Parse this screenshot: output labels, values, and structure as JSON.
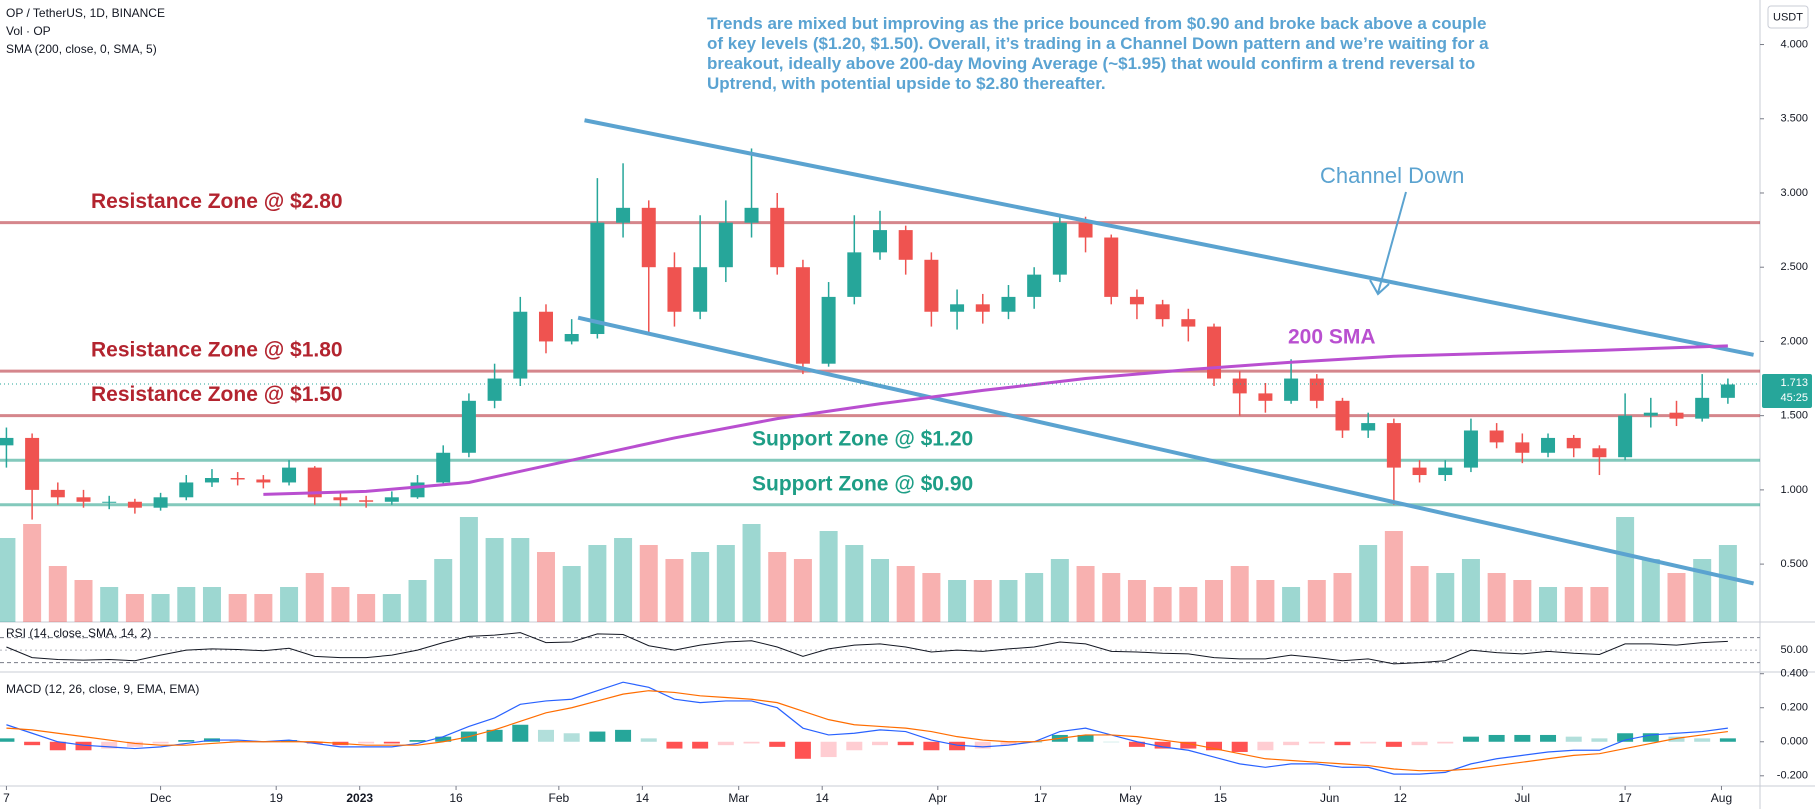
{
  "header": {
    "symbol": "OP / TetherUS, 1D, BINANCE",
    "volume_label": "Vol · OP",
    "sma_label": "SMA (200, close, 0, SMA, 5)",
    "currency": "USDT"
  },
  "chart_data": [
    {
      "type": "candlestick",
      "x": [
        0,
        4,
        8,
        12,
        16,
        20,
        24,
        28,
        32,
        36,
        40,
        44,
        48,
        52,
        56,
        60,
        64,
        68,
        72,
        76,
        80,
        84,
        88,
        92,
        96,
        100,
        104,
        108,
        112,
        116,
        120,
        124,
        128,
        132,
        136,
        140,
        144,
        148,
        152,
        156,
        160,
        164,
        168,
        172,
        176,
        180,
        184,
        188,
        192,
        196,
        200,
        204,
        208,
        212,
        216,
        220,
        224,
        228,
        232,
        236,
        240,
        244,
        248,
        252,
        256,
        260,
        264,
        268
      ],
      "open": [
        1.3,
        1.35,
        1.0,
        0.95,
        0.92,
        0.92,
        0.88,
        0.95,
        1.05,
        1.08,
        1.07,
        1.05,
        1.15,
        0.95,
        0.93,
        0.92,
        0.95,
        1.05,
        1.25,
        1.6,
        1.75,
        2.2,
        2.0,
        2.05,
        2.8,
        2.9,
        2.5,
        2.2,
        2.5,
        2.8,
        2.9,
        2.5,
        1.85,
        2.3,
        2.6,
        2.75,
        2.55,
        2.2,
        2.25,
        2.2,
        2.3,
        2.45,
        2.8,
        2.7,
        2.3,
        2.25,
        2.15,
        2.1,
        1.75,
        1.65,
        1.6,
        1.75,
        1.6,
        1.4,
        1.45,
        1.15,
        1.1,
        1.15,
        1.4,
        1.32,
        1.25,
        1.35,
        1.28,
        1.22,
        1.5,
        1.52,
        1.48,
        1.62
      ],
      "high": [
        1.42,
        1.38,
        1.05,
        1.0,
        0.96,
        0.94,
        0.98,
        1.1,
        1.14,
        1.12,
        1.1,
        1.2,
        1.16,
        0.99,
        0.96,
        0.99,
        1.1,
        1.3,
        1.65,
        1.85,
        2.3,
        2.25,
        2.15,
        3.1,
        3.2,
        2.95,
        2.6,
        2.85,
        2.95,
        3.3,
        3.0,
        2.55,
        2.4,
        2.85,
        2.88,
        2.78,
        2.6,
        2.35,
        2.32,
        2.38,
        2.5,
        2.85,
        2.84,
        2.72,
        2.35,
        2.28,
        2.22,
        2.12,
        1.8,
        1.72,
        1.88,
        1.78,
        1.62,
        1.52,
        1.48,
        1.2,
        1.2,
        1.48,
        1.45,
        1.38,
        1.38,
        1.37,
        1.3,
        1.65,
        1.62,
        1.6,
        1.78,
        1.75
      ],
      "low": [
        1.15,
        0.8,
        0.9,
        0.88,
        0.87,
        0.84,
        0.86,
        0.93,
        1.02,
        1.03,
        1.01,
        1.03,
        0.9,
        0.89,
        0.88,
        0.9,
        0.94,
        1.03,
        1.22,
        1.55,
        1.7,
        1.92,
        1.98,
        2.02,
        2.7,
        2.05,
        2.1,
        2.15,
        2.4,
        2.7,
        2.45,
        1.78,
        1.83,
        2.25,
        2.55,
        2.45,
        2.1,
        2.08,
        2.12,
        2.15,
        2.22,
        2.4,
        2.6,
        2.25,
        2.15,
        2.1,
        2.0,
        1.7,
        1.5,
        1.52,
        1.58,
        1.55,
        1.35,
        1.35,
        0.9,
        1.05,
        1.06,
        1.12,
        1.28,
        1.18,
        1.22,
        1.22,
        1.1,
        1.2,
        1.42,
        1.43,
        1.46,
        1.58
      ],
      "close": [
        1.35,
        1.0,
        0.95,
        0.92,
        0.92,
        0.88,
        0.95,
        1.05,
        1.08,
        1.07,
        1.05,
        1.15,
        0.95,
        0.93,
        0.92,
        0.95,
        1.05,
        1.25,
        1.6,
        1.75,
        2.2,
        2.0,
        2.05,
        2.8,
        2.9,
        2.5,
        2.2,
        2.5,
        2.8,
        2.9,
        2.5,
        1.85,
        2.3,
        2.6,
        2.75,
        2.55,
        2.2,
        2.25,
        2.2,
        2.3,
        2.45,
        2.8,
        2.7,
        2.3,
        2.25,
        2.15,
        2.1,
        1.75,
        1.65,
        1.6,
        1.75,
        1.6,
        1.4,
        1.45,
        1.15,
        1.1,
        1.15,
        1.4,
        1.32,
        1.25,
        1.35,
        1.28,
        1.22,
        1.5,
        1.52,
        1.48,
        1.62,
        1.71
      ],
      "volume": [
        60,
        70,
        40,
        30,
        25,
        20,
        20,
        25,
        25,
        20,
        20,
        25,
        35,
        25,
        20,
        20,
        30,
        45,
        75,
        60,
        60,
        50,
        40,
        55,
        60,
        55,
        45,
        50,
        55,
        70,
        50,
        45,
        65,
        55,
        45,
        40,
        35,
        30,
        30,
        30,
        35,
        45,
        40,
        35,
        30,
        25,
        25,
        30,
        40,
        30,
        25,
        30,
        35,
        55,
        65,
        40,
        35,
        45,
        35,
        30,
        25,
        25,
        25,
        75,
        45,
        35,
        45,
        55
      ],
      "volume_lim": [
        0,
        100
      ],
      "up_color": "#26a69a",
      "down_color": "#ef5350",
      "xlim": [
        -1,
        273
      ],
      "ylim": [
        0.11,
        4.3
      ],
      "xticks": [
        {
          "value": 0,
          "label": "7"
        },
        {
          "value": 24,
          "label": "Dec"
        },
        {
          "value": 42,
          "label": "19"
        },
        {
          "value": 55,
          "label": "2023"
        },
        {
          "value": 70,
          "label": "16"
        },
        {
          "value": 86,
          "label": "Feb"
        },
        {
          "value": 99,
          "label": "14"
        },
        {
          "value": 114,
          "label": "Mar"
        },
        {
          "value": 127,
          "label": "14"
        },
        {
          "value": 145,
          "label": "Apr"
        },
        {
          "value": 161,
          "label": "17"
        },
        {
          "value": 175,
          "label": "May"
        },
        {
          "value": 189,
          "label": "15"
        },
        {
          "value": 206,
          "label": "Jun"
        },
        {
          "value": 217,
          "label": "12"
        },
        {
          "value": 236,
          "label": "Jul"
        },
        {
          "value": 252,
          "label": "17"
        },
        {
          "value": 267,
          "label": "Aug"
        }
      ],
      "yticks": [
        {
          "value": 0.5,
          "label": "0.500"
        },
        {
          "value": 1,
          "label": "1.000"
        },
        {
          "value": 1.5,
          "label": "1.500"
        },
        {
          "value": 2,
          "label": "2.000"
        },
        {
          "value": 2.5,
          "label": "2.500"
        },
        {
          "value": 3,
          "label": "3.000"
        },
        {
          "value": 3.5,
          "label": "3.500"
        },
        {
          "value": 4,
          "label": "4.000"
        }
      ],
      "sma": {
        "name": "200 SMA",
        "color": "#b94fd0",
        "x": [
          40,
          56,
          72,
          88,
          104,
          120,
          136,
          152,
          168,
          184,
          200,
          216,
          232,
          248,
          268
        ],
        "values": [
          0.97,
          0.99,
          1.05,
          1.2,
          1.35,
          1.48,
          1.58,
          1.67,
          1.75,
          1.81,
          1.86,
          1.9,
          1.92,
          1.94,
          1.97
        ]
      },
      "zones": [
        {
          "label": "Resistance Zone @ $2.80",
          "level": 2.8,
          "color": "#b3242f"
        },
        {
          "label": "Resistance Zone @ $1.80",
          "level": 1.8,
          "color": "#b3242f"
        },
        {
          "label": "Resistance Zone @ $1.50",
          "level": 1.5,
          "color": "#b3242f"
        },
        {
          "label": "Support Zone @ $1.20",
          "level": 1.2,
          "color": "#1e9e86"
        },
        {
          "label": "Support Zone @ $0.90",
          "level": 0.9,
          "color": "#1e9e86"
        }
      ],
      "channels": [
        {
          "name": "Channel Down",
          "color": "#5ba3d0",
          "x": [
            90,
            272
          ],
          "values": [
            3.49,
            1.91
          ]
        },
        {
          "color": "#5ba3d0",
          "x": [
            89,
            272
          ],
          "values": [
            2.16,
            0.37
          ]
        }
      ],
      "annotation": "Trends are mixed but improving as the price bounced from $0.90 and broke back above a couple of key levels ($1.20, $1.50). Overall, it’s trading in a Channel Down pattern and we’re waiting for a breakout, ideally above 200-day Moving Average (~$1.95) that would confirm a trend reversal to Uptrend, with potential upside to $2.80 thereafter.",
      "current_price": 1.713,
      "countdown": "45:25"
    },
    {
      "type": "line",
      "title": "RSI (14, close, SMA, 14, 2)",
      "color": "#131722",
      "values": [
        55,
        38,
        35,
        34,
        35,
        33,
        42,
        50,
        52,
        51,
        49,
        53,
        40,
        38,
        38,
        42,
        50,
        62,
        72,
        74,
        78,
        62,
        63,
        76,
        75,
        57,
        50,
        58,
        63,
        65,
        55,
        40,
        52,
        58,
        60,
        55,
        47,
        50,
        48,
        52,
        55,
        63,
        60,
        48,
        47,
        45,
        44,
        38,
        36,
        36,
        42,
        38,
        33,
        36,
        28,
        30,
        33,
        50,
        46,
        44,
        48,
        45,
        43,
        60,
        60,
        58,
        62,
        64
      ],
      "bands": [
        70,
        30
      ],
      "ylim": [
        15,
        95
      ],
      "yticks": [
        {
          "value": 50,
          "label": "50.00"
        }
      ]
    },
    {
      "type": "macd",
      "title": "MACD (12, 26, close, 9, EMA, EMA)",
      "macd": [
        0.1,
        0.05,
        0.0,
        -0.02,
        -0.03,
        -0.04,
        -0.03,
        -0.01,
        0.01,
        0.01,
        0.0,
        0.01,
        -0.01,
        -0.03,
        -0.03,
        -0.03,
        -0.01,
        0.03,
        0.09,
        0.14,
        0.22,
        0.24,
        0.25,
        0.3,
        0.35,
        0.32,
        0.25,
        0.23,
        0.24,
        0.24,
        0.2,
        0.08,
        0.04,
        0.05,
        0.07,
        0.06,
        0.01,
        -0.02,
        -0.03,
        -0.02,
        0.0,
        0.06,
        0.08,
        0.04,
        0.0,
        -0.03,
        -0.05,
        -0.09,
        -0.13,
        -0.15,
        -0.13,
        -0.13,
        -0.15,
        -0.15,
        -0.19,
        -0.19,
        -0.18,
        -0.13,
        -0.1,
        -0.08,
        -0.06,
        -0.05,
        -0.05,
        0.01,
        0.04,
        0.05,
        0.06,
        0.08
      ],
      "signal": [
        0.08,
        0.07,
        0.05,
        0.03,
        0.01,
        -0.01,
        -0.02,
        -0.02,
        -0.01,
        0.0,
        0.0,
        0.0,
        0.0,
        -0.01,
        -0.02,
        -0.02,
        -0.02,
        0.0,
        0.03,
        0.07,
        0.12,
        0.17,
        0.2,
        0.24,
        0.28,
        0.3,
        0.29,
        0.27,
        0.26,
        0.25,
        0.23,
        0.18,
        0.13,
        0.1,
        0.09,
        0.08,
        0.06,
        0.03,
        0.01,
        0.0,
        0.0,
        0.02,
        0.04,
        0.04,
        0.03,
        0.01,
        -0.01,
        -0.04,
        -0.07,
        -0.1,
        -0.11,
        -0.12,
        -0.13,
        -0.14,
        -0.16,
        -0.17,
        -0.17,
        -0.16,
        -0.14,
        -0.12,
        -0.1,
        -0.08,
        -0.07,
        -0.04,
        -0.01,
        0.02,
        0.04,
        0.06
      ],
      "histogram": [
        0.02,
        -0.02,
        -0.05,
        -0.05,
        -0.04,
        -0.03,
        -0.01,
        0.01,
        0.02,
        0.01,
        0.0,
        0.01,
        -0.01,
        -0.02,
        -0.01,
        -0.01,
        0.01,
        0.03,
        0.06,
        0.07,
        0.1,
        0.07,
        0.05,
        0.06,
        0.07,
        0.02,
        -0.04,
        -0.04,
        -0.02,
        -0.01,
        -0.03,
        -0.1,
        -0.09,
        -0.05,
        -0.02,
        -0.02,
        -0.05,
        -0.05,
        -0.04,
        -0.02,
        0.0,
        0.04,
        0.04,
        0.0,
        -0.03,
        -0.04,
        -0.04,
        -0.05,
        -0.06,
        -0.05,
        -0.02,
        -0.01,
        -0.02,
        -0.01,
        -0.03,
        -0.02,
        -0.01,
        0.03,
        0.04,
        0.04,
        0.04,
        0.03,
        0.02,
        0.05,
        0.05,
        0.03,
        0.02,
        0.02
      ],
      "macd_color": "#2962ff",
      "signal_color": "#ff6d00",
      "histogram_colors": [
        "#26a69a",
        "#b2dfdb",
        "#ff5252",
        "#ffcdd2"
      ],
      "ylim": [
        -0.26,
        0.41
      ],
      "yticks": [
        {
          "value": 0.4,
          "label": "0.400"
        },
        {
          "value": 0.2,
          "label": "0.200"
        },
        {
          "value": 0,
          "label": "0.000"
        },
        {
          "value": -0.2,
          "label": "-0.200"
        }
      ]
    }
  ]
}
